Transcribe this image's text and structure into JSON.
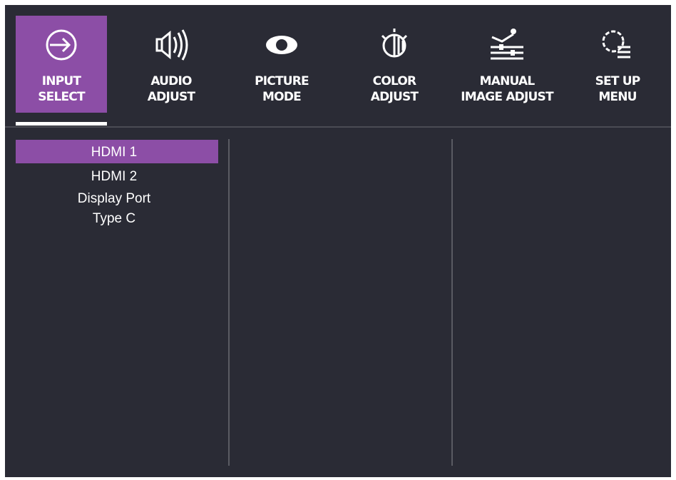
{
  "tabs": [
    {
      "lines": [
        "INPUT",
        "SELECT"
      ]
    },
    {
      "lines": [
        "AUDIO",
        "ADJUST"
      ]
    },
    {
      "lines": [
        "PICTURE",
        "MODE"
      ]
    },
    {
      "lines": [
        "COLOR",
        "ADJUST"
      ]
    },
    {
      "lines": [
        "MANUAL",
        "IMAGE ADJUST"
      ]
    },
    {
      "lines": [
        "SET UP",
        "MENU"
      ]
    }
  ],
  "menu": {
    "items": [
      "HDMI 1",
      "HDMI 2",
      "Display Port",
      "Type C"
    ]
  }
}
